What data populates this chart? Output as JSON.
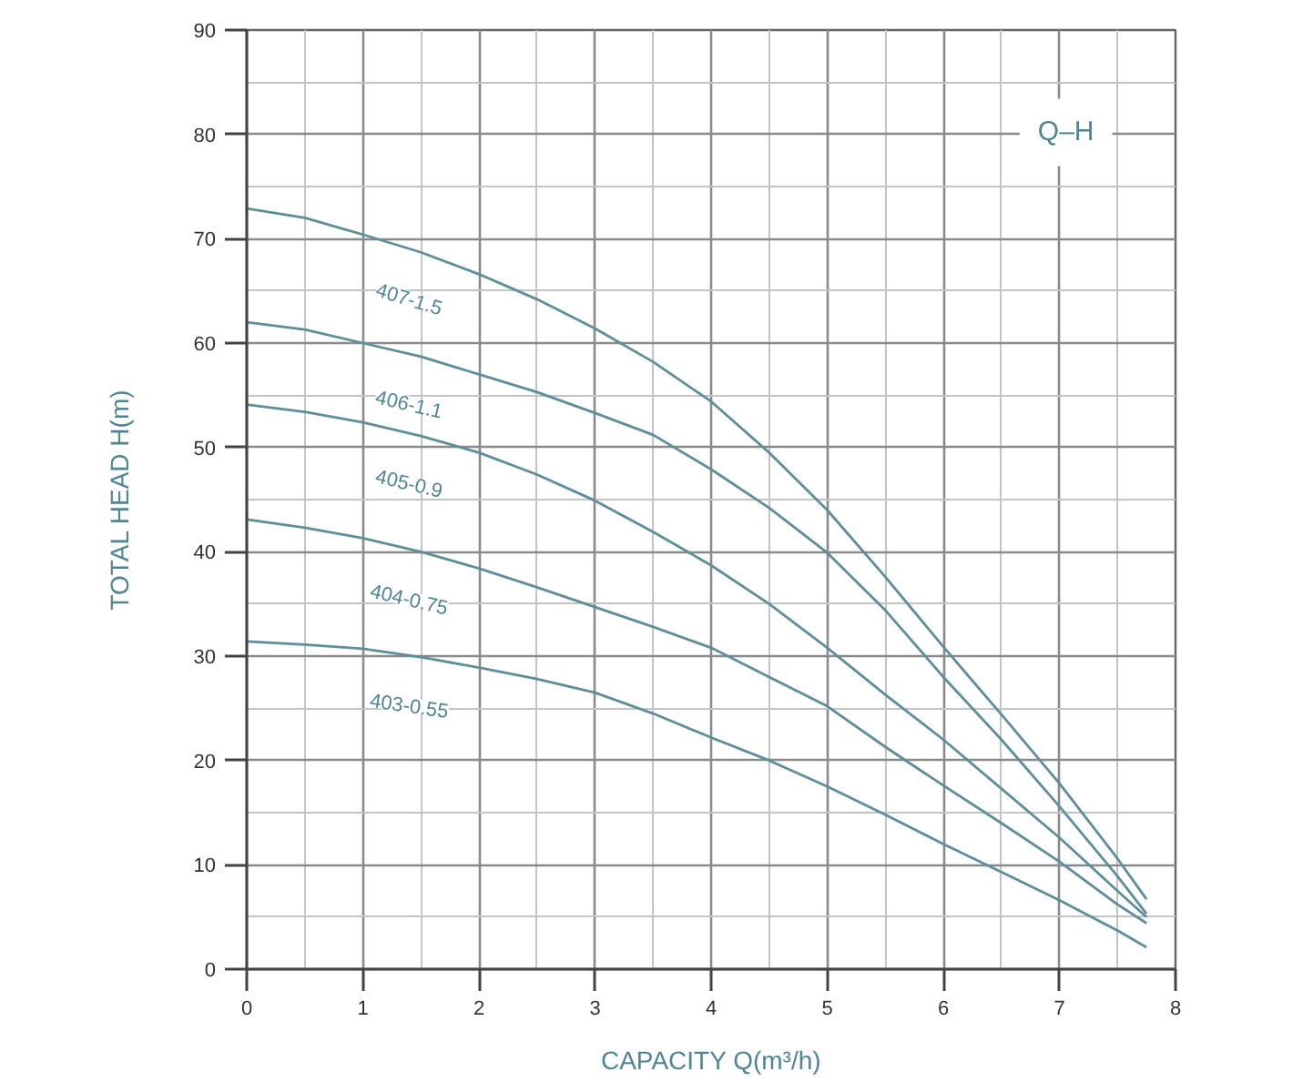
{
  "chart_data": {
    "type": "line",
    "title": "Q–H",
    "xlabel": "CAPACITY Q(m³/h)",
    "ylabel": "TOTAL HEAD H(m)",
    "xlim": [
      0,
      8
    ],
    "ylim": [
      0,
      90
    ],
    "xticks": [
      0,
      1,
      2,
      3,
      4,
      5,
      6,
      7,
      8
    ],
    "yticks": [
      0,
      10,
      20,
      30,
      40,
      50,
      60,
      70,
      80,
      90
    ],
    "grid": true,
    "x": [
      0,
      0.5,
      1,
      1.5,
      2,
      2.5,
      3,
      3.5,
      4,
      4.5,
      5,
      5.5,
      6,
      6.5,
      7,
      7.5,
      7.75
    ],
    "series": [
      {
        "name": "407-1.5",
        "color": "#5e8e99",
        "values": [
          72.9,
          72.0,
          70.4,
          68.7,
          66.6,
          64.2,
          61.4,
          58.2,
          54.4,
          49.5,
          44.0,
          37.6,
          30.9,
          24.4,
          17.8,
          10.6,
          6.7
        ]
      },
      {
        "name": "406-1.1",
        "color": "#5e8e99",
        "values": [
          62.0,
          61.3,
          60.0,
          58.7,
          57.0,
          55.3,
          53.3,
          51.2,
          47.9,
          44.2,
          39.9,
          34.4,
          28.0,
          22.0,
          15.6,
          8.9,
          5.3
        ]
      },
      {
        "name": "405-0.9",
        "color": "#5e8e99",
        "values": [
          54.1,
          53.4,
          52.4,
          51.1,
          49.5,
          47.4,
          44.9,
          41.9,
          38.7,
          35.0,
          30.8,
          26.3,
          22.0,
          17.3,
          12.6,
          7.5,
          5.0
        ]
      },
      {
        "name": "404-0.75",
        "color": "#5e8e99",
        "values": [
          43.1,
          42.3,
          41.3,
          40.0,
          38.4,
          36.6,
          34.7,
          32.8,
          30.8,
          28.0,
          25.2,
          21.3,
          17.6,
          14.0,
          10.3,
          6.2,
          4.4
        ]
      },
      {
        "name": "403-0.55",
        "color": "#5e8e99",
        "values": [
          31.4,
          31.1,
          30.7,
          29.9,
          28.9,
          27.8,
          26.5,
          24.5,
          22.2,
          20.0,
          17.5,
          14.8,
          12.0,
          9.3,
          6.6,
          3.7,
          2.1
        ]
      }
    ]
  }
}
